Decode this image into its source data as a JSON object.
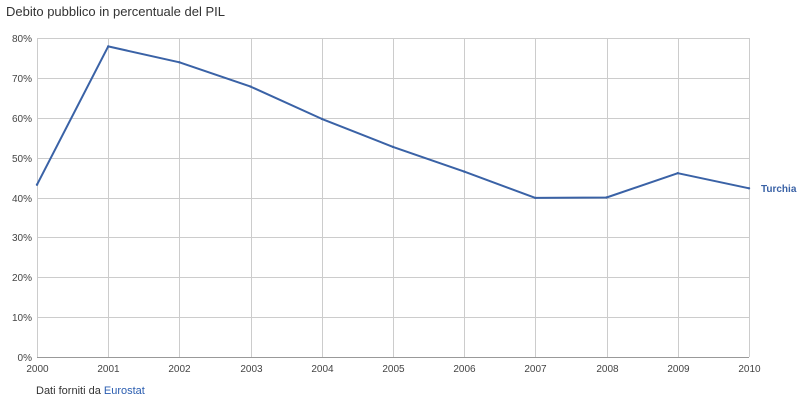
{
  "chart_data": {
    "type": "line",
    "title": "Debito pubblico in percentuale del PIL",
    "xlabel": "",
    "ylabel": "",
    "x": [
      2000,
      2001,
      2002,
      2003,
      2004,
      2005,
      2006,
      2007,
      2008,
      2009,
      2010
    ],
    "x_tick_labels": [
      "2000",
      "2001",
      "2002",
      "2003",
      "2004",
      "2005",
      "2006",
      "2007",
      "2008",
      "2009",
      "2010"
    ],
    "xlim": [
      2000,
      2010
    ],
    "ylim": [
      0,
      80
    ],
    "y_ticks": [
      0,
      10,
      20,
      30,
      40,
      50,
      60,
      70,
      80
    ],
    "y_tick_labels": [
      "0%",
      "10%",
      "20%",
      "30%",
      "40%",
      "50%",
      "60%",
      "70%",
      "80%"
    ],
    "grid": true,
    "legend_placement": "right",
    "series": [
      {
        "name": "Turchia",
        "color": "#3a62a6",
        "values": [
          43.2,
          77.9,
          73.9,
          67.8,
          59.7,
          52.7,
          46.5,
          39.9,
          40.0,
          46.1,
          42.3
        ]
      }
    ]
  },
  "source": {
    "prefix": "Dati forniti da",
    "link_text": "Eurostat"
  }
}
